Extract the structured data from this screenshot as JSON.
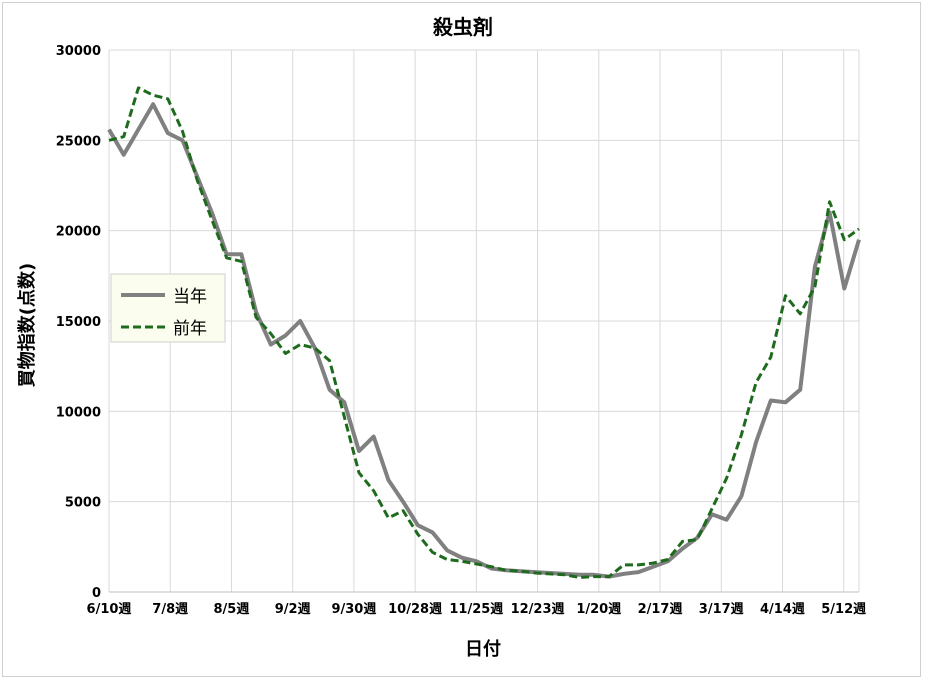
{
  "chart_data": {
    "type": "line",
    "title": "殺虫剤",
    "xlabel": "日付",
    "ylabel": "買物指数(点数)",
    "ylim": [
      0,
      30000
    ],
    "yticks": [
      0,
      5000,
      10000,
      15000,
      20000,
      25000,
      30000
    ],
    "xtick_labels": [
      "6/10週",
      "7/8週",
      "8/5週",
      "9/2週",
      "9/30週",
      "10/28週",
      "11/25週",
      "12/23週",
      "1/20週",
      "2/17週",
      "3/17週",
      "4/14週",
      "5/12週"
    ],
    "grid": true,
    "legend_position": "left-middle",
    "legend_background": "#fbfdef",
    "series": [
      {
        "name": "当年",
        "color": "#808080",
        "dash": "solid",
        "values": [
          25600,
          24200,
          25600,
          27000,
          25400,
          25000,
          23000,
          21000,
          18700,
          18700,
          15500,
          13700,
          14200,
          15000,
          13500,
          11200,
          10500,
          7800,
          8600,
          6200,
          5000,
          3700,
          3300,
          2300,
          1900,
          1700,
          1300,
          1200,
          1150,
          1100,
          1050,
          1000,
          950,
          950,
          850,
          1000,
          1100,
          1400,
          1700,
          2400,
          3000,
          4300,
          4000,
          5300,
          8300,
          10600,
          10500,
          11200,
          18000,
          21000,
          16800,
          19500
        ]
      },
      {
        "name": "前年",
        "color": "#1e6b1e",
        "dash": "dashed",
        "values": [
          25000,
          25200,
          27900,
          27500,
          27300,
          25500,
          22800,
          20600,
          18500,
          18300,
          15200,
          14300,
          13200,
          13700,
          13500,
          12800,
          9700,
          6600,
          5600,
          4100,
          4500,
          3200,
          2200,
          1800,
          1700,
          1550,
          1400,
          1200,
          1150,
          1050,
          1000,
          950,
          800,
          850,
          850,
          1500,
          1500,
          1600,
          1800,
          2800,
          2900,
          4600,
          6300,
          8700,
          11600,
          13000,
          16400,
          15400,
          16900,
          21600,
          19500,
          20100
        ]
      }
    ]
  }
}
